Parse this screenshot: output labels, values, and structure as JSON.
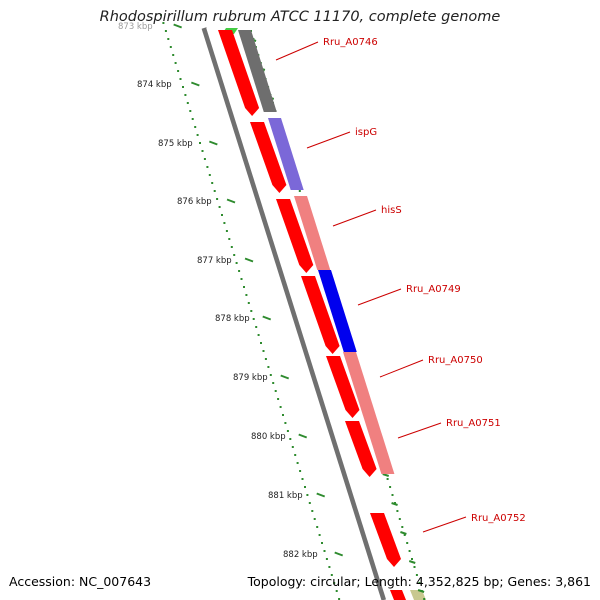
{
  "header": {
    "title": "Rhodospirillum rubrum ATCC 11170, complete genome"
  },
  "footer": {
    "accession": "Accession: NC_007643",
    "summary": "Topology: circular; Length: 4,352,825 bp; Genes: 3,861"
  },
  "axis": {
    "ticks": [
      "873 kbp",
      "874 kbp",
      "875 kbp",
      "876 kbp",
      "877 kbp",
      "878 kbp",
      "879 kbp",
      "880 kbp",
      "881 kbp",
      "882 kbp"
    ]
  },
  "genes": [
    {
      "label": "Rru_A0746",
      "color": "#ff0000",
      "pair_color": "#6e6e6e"
    },
    {
      "label": "ispG",
      "color": "#ff0000",
      "pair_color": "#7b68d8"
    },
    {
      "label": "hisS",
      "color": "#ff0000",
      "pair_color": "#f08080"
    },
    {
      "label": "Rru_A0749",
      "color": "#ff0000",
      "pair_color": "#0000ee"
    },
    {
      "label": "Rru_A0750",
      "color": "#ff0000",
      "pair_color": "#f08080"
    },
    {
      "label": "Rru_A0751",
      "color": "#ff0000",
      "pair_color": "#f08080"
    },
    {
      "label": "Rru_A0752",
      "color": "#ff0000"
    }
  ],
  "colors": {
    "backbone": "#707070",
    "tick": "#2e8b2e",
    "label": "#cc0000",
    "gc_green": "#44cc44",
    "gc_olive": "#c8c890"
  }
}
